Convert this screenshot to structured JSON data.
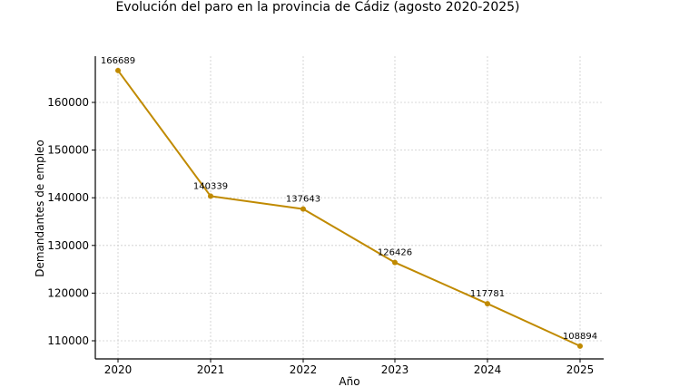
{
  "chart_data": {
    "type": "line",
    "title": "Evolución del paro en la provincia de Cádiz (agosto 2020-2025)",
    "xlabel": "Año",
    "ylabel": "Demandantes de empleo",
    "categories": [
      "2020",
      "2021",
      "2022",
      "2023",
      "2024",
      "2025"
    ],
    "series": [
      {
        "name": "Demandantes de empleo",
        "values": [
          166689,
          140339,
          137643,
          126426,
          117781,
          108894
        ],
        "color": "#c08a00"
      }
    ],
    "yticks": [
      110000,
      120000,
      130000,
      140000,
      150000,
      160000
    ],
    "ylim": [
      106000,
      170000
    ],
    "grid": true,
    "legend": null
  }
}
